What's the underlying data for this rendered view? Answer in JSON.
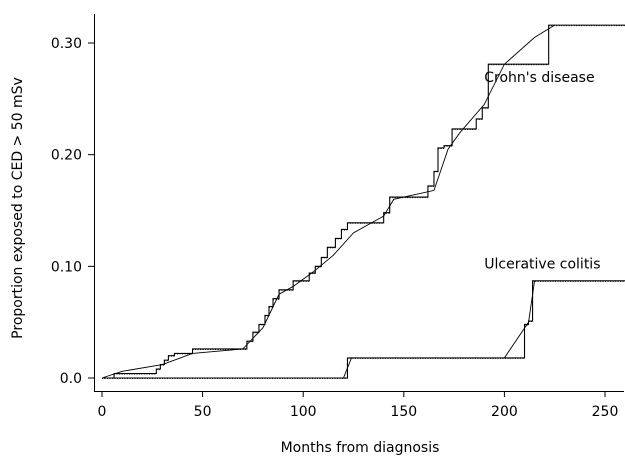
{
  "chart_data": {
    "type": "line",
    "title": "",
    "xlabel": "Months from diagnosis",
    "ylabel": "Proportion exposed to CED > 50 mSv",
    "xlim": [
      0,
      260
    ],
    "ylim": [
      0,
      0.32
    ],
    "x_ticks": [
      0,
      50,
      100,
      150,
      200,
      250
    ],
    "x_tick_labels": [
      "0",
      "50",
      "100",
      "150",
      "200",
      "250"
    ],
    "y_ticks": [
      0,
      0.1,
      0.2,
      0.3
    ],
    "y_tick_labels": [
      "0.0",
      "0.10",
      "0.20",
      "0.30"
    ],
    "grid": false,
    "series": [
      {
        "name": "Crohn's disease",
        "style": "step",
        "x": [
          0,
          6,
          27,
          29,
          31,
          33,
          36,
          45,
          72,
          75,
          78,
          81,
          83,
          85,
          88,
          95,
          103,
          106,
          109,
          112,
          116,
          119,
          122,
          129,
          140,
          143,
          162,
          165,
          167,
          170,
          174,
          186,
          189,
          192,
          222,
          260
        ],
        "y": [
          0,
          0.004,
          0.008,
          0.012,
          0.016,
          0.02,
          0.022,
          0.026,
          0.033,
          0.041,
          0.048,
          0.056,
          0.064,
          0.071,
          0.079,
          0.087,
          0.094,
          0.1,
          0.108,
          0.117,
          0.125,
          0.133,
          0.139,
          0.139,
          0.148,
          0.162,
          0.172,
          0.185,
          0.206,
          0.208,
          0.223,
          0.232,
          0.242,
          0.281,
          0.316,
          0.316
        ]
      },
      {
        "name": "Ulcerative colitis",
        "style": "step",
        "x": [
          0,
          122,
          210,
          212,
          214,
          260
        ],
        "y": [
          0,
          0.018,
          0.048,
          0.051,
          0.087,
          0.087
        ]
      },
      {
        "name": "Crohn's disease",
        "style": "smooth",
        "x": [
          0,
          10,
          30,
          45,
          70,
          80,
          88,
          95,
          105,
          115,
          125,
          140,
          145,
          165,
          172,
          178,
          190,
          200,
          215,
          225
        ],
        "y": [
          0,
          0.006,
          0.012,
          0.022,
          0.026,
          0.045,
          0.075,
          0.082,
          0.095,
          0.11,
          0.13,
          0.145,
          0.16,
          0.168,
          0.205,
          0.22,
          0.245,
          0.281,
          0.305,
          0.316
        ]
      },
      {
        "name": "Ulcerative colitis",
        "style": "smooth",
        "x": [
          0,
          120,
          124,
          200,
          212,
          215
        ],
        "y": [
          0,
          0.0,
          0.018,
          0.018,
          0.05,
          0.087
        ]
      }
    ],
    "annotations": [
      {
        "text": "Crohn's disease",
        "x": 190,
        "y": 0.265
      },
      {
        "text": "Ulcerative colitis",
        "x": 190,
        "y": 0.098
      }
    ]
  }
}
